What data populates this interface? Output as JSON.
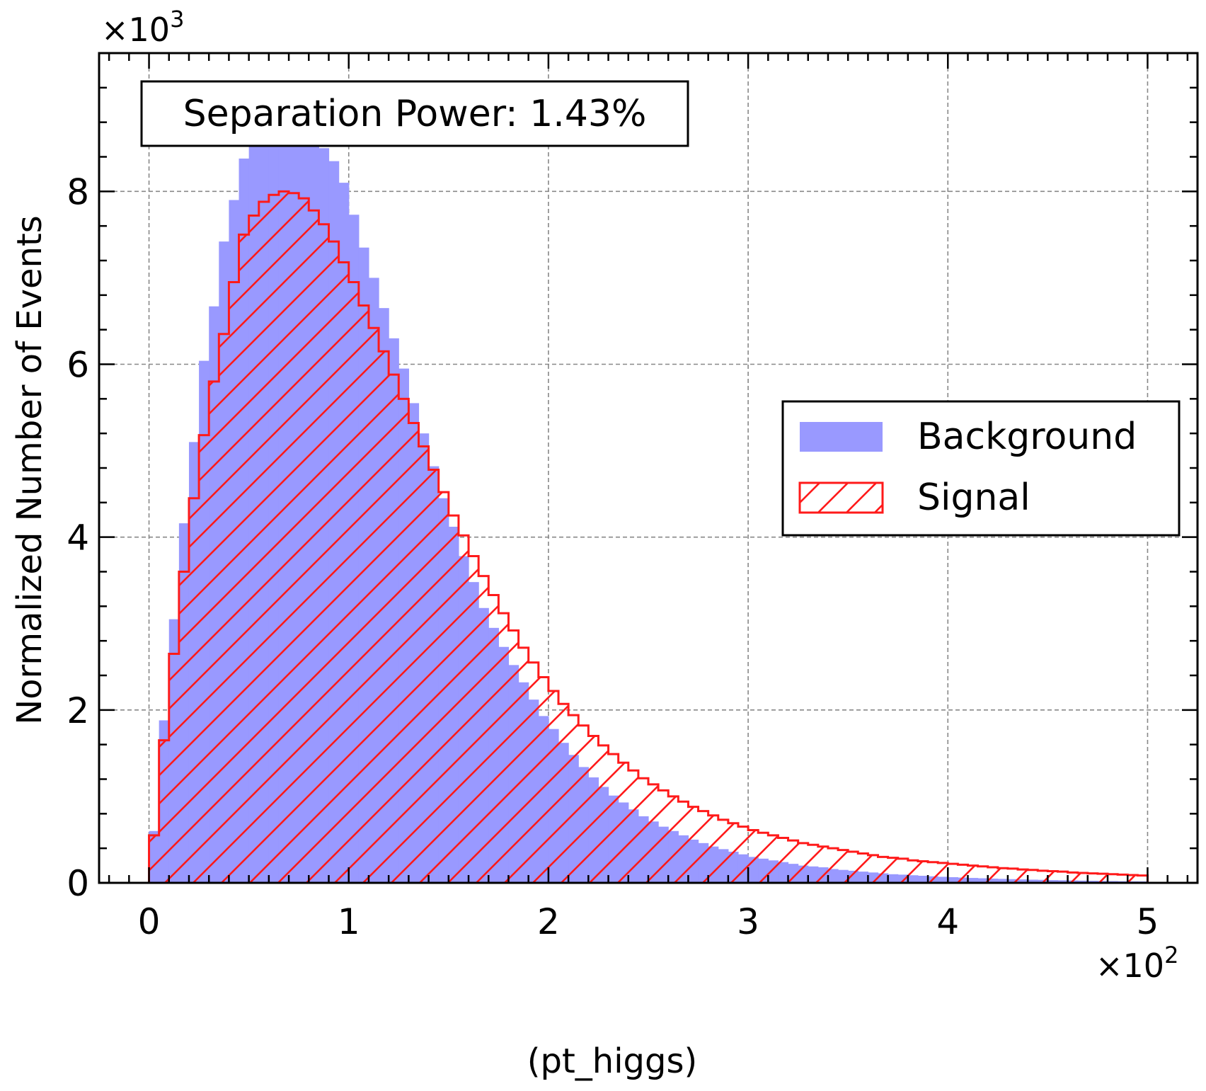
{
  "chart_data": {
    "type": "histogram",
    "xlabel": "(pt_higgs)",
    "ylabel": "Normalized Number of Events",
    "x_multiplier": {
      "base": "×10",
      "exp": "2"
    },
    "y_multiplier": {
      "base": "×10",
      "exp": "3"
    },
    "xlim": [
      -0.25,
      5.25
    ],
    "ylim": [
      0,
      9.6
    ],
    "x_ticks": [
      0,
      1,
      2,
      3,
      4,
      5
    ],
    "y_ticks": [
      0,
      2,
      4,
      6,
      8
    ],
    "grid": true,
    "legend_position": "center-right",
    "annotation": "Separation Power: 1.43%",
    "bin_edges": {
      "start": 0,
      "end": 5,
      "count": 100
    },
    "series": [
      {
        "name": "Background",
        "style": "filled",
        "color": "#9999ff",
        "values": [
          0.6,
          1.88,
          3.05,
          4.16,
          5.1,
          6.04,
          6.67,
          7.42,
          7.9,
          8.38,
          8.6,
          8.62,
          8.62,
          8.62,
          8.62,
          8.62,
          8.62,
          8.5,
          8.35,
          8.1,
          7.73,
          7.35,
          7.0,
          6.65,
          6.3,
          5.95,
          5.55,
          5.2,
          4.82,
          4.45,
          4.12,
          3.78,
          3.48,
          3.18,
          2.95,
          2.73,
          2.52,
          2.32,
          2.12,
          1.93,
          1.78,
          1.62,
          1.48,
          1.34,
          1.22,
          1.11,
          1.01,
          0.93,
          0.85,
          0.77,
          0.71,
          0.65,
          0.6,
          0.55,
          0.5,
          0.46,
          0.42,
          0.39,
          0.36,
          0.33,
          0.3,
          0.28,
          0.26,
          0.24,
          0.22,
          0.2,
          0.19,
          0.18,
          0.16,
          0.15,
          0.14,
          0.13,
          0.12,
          0.11,
          0.1,
          0.095,
          0.088,
          0.082,
          0.076,
          0.07,
          0.066,
          0.061,
          0.057,
          0.053,
          0.049,
          0.046,
          0.043,
          0.04,
          0.037,
          0.035,
          0.032,
          0.03,
          0.028,
          0.026,
          0.024,
          0.022,
          0.021,
          0.019,
          0.018,
          0.017
        ]
      },
      {
        "name": "Signal",
        "style": "hatched",
        "color": "#ff1a1a",
        "values": [
          0.55,
          1.65,
          2.65,
          3.6,
          4.45,
          5.18,
          5.8,
          6.35,
          6.95,
          7.5,
          7.72,
          7.88,
          7.96,
          8.0,
          7.98,
          7.92,
          7.78,
          7.62,
          7.42,
          7.18,
          6.95,
          6.68,
          6.42,
          6.15,
          5.88,
          5.6,
          5.32,
          5.05,
          4.78,
          4.52,
          4.25,
          4.02,
          3.78,
          3.55,
          3.33,
          3.12,
          2.92,
          2.72,
          2.55,
          2.38,
          2.22,
          2.07,
          1.94,
          1.82,
          1.7,
          1.59,
          1.49,
          1.39,
          1.3,
          1.21,
          1.14,
          1.07,
          1.0,
          0.94,
          0.88,
          0.83,
          0.78,
          0.73,
          0.69,
          0.65,
          0.61,
          0.58,
          0.55,
          0.52,
          0.49,
          0.46,
          0.44,
          0.42,
          0.4,
          0.38,
          0.36,
          0.34,
          0.32,
          0.3,
          0.29,
          0.28,
          0.26,
          0.25,
          0.24,
          0.23,
          0.22,
          0.21,
          0.2,
          0.19,
          0.18,
          0.17,
          0.165,
          0.155,
          0.15,
          0.14,
          0.135,
          0.13,
          0.12,
          0.115,
          0.11,
          0.105,
          0.1,
          0.095,
          0.09,
          0.085
        ]
      }
    ]
  }
}
